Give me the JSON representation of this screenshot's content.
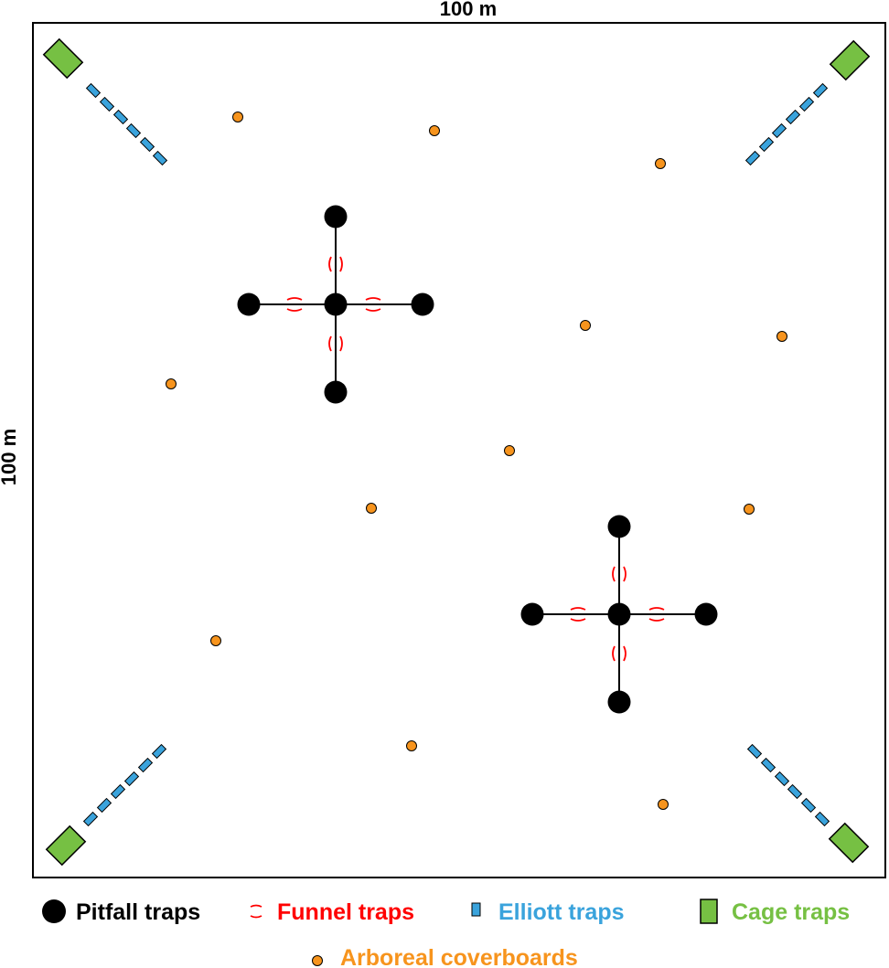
{
  "dimensions": {
    "top_label": "100 m",
    "left_label": "100 m"
  },
  "legend": {
    "pitfall": "Pitfall traps",
    "funnel": "Funnel traps",
    "elliott": "Elliott traps",
    "cage": "Cage traps",
    "arboreal": "Arboreal coverboards"
  },
  "colors": {
    "pitfall": "#000000",
    "funnel": "#ff0000",
    "elliott": "#3aa3dc",
    "cage": "#76c043",
    "arboreal": "#f7941d",
    "frame": "#000000"
  }
}
